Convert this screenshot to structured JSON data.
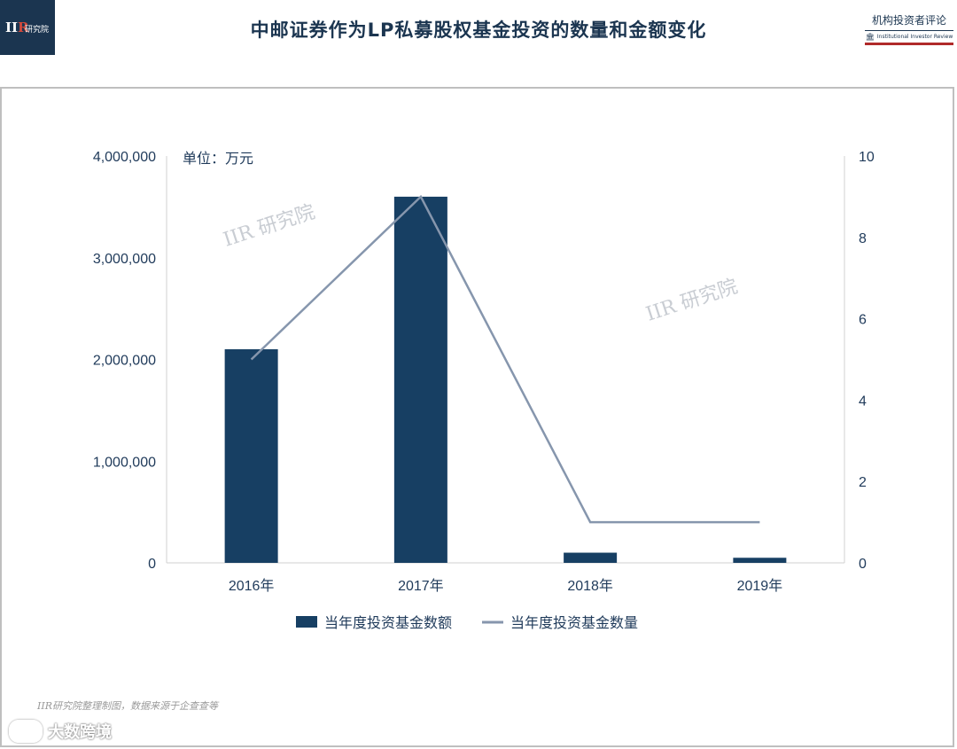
{
  "header": {
    "logo_mark_i": "II",
    "logo_mark_r": "R",
    "logo_text": "研究院",
    "title": "中邮证券作为LP私募股权基金投资的数量和金额变化",
    "brand_cn": "机构投资者评论",
    "brand_en": "Institutional Investor Review"
  },
  "footer": {
    "source": "IIR研究院整理制图，数据来源于企查查等",
    "corner_text": "大数跨境"
  },
  "chart_data": {
    "type": "bar",
    "unit_label": "单位：万元",
    "watermark": "IIR 研究院",
    "categories": [
      "2016年",
      "2017年",
      "2018年",
      "2019年"
    ],
    "series": [
      {
        "name": "当年度投资基金数额",
        "type": "bar",
        "axis": "left",
        "color": "#173f63",
        "values": [
          2100000,
          3600000,
          100000,
          50000
        ]
      },
      {
        "name": "当年度投资基金数量",
        "type": "line",
        "axis": "right",
        "color": "#8696ad",
        "values": [
          5,
          9,
          1,
          1
        ]
      }
    ],
    "y_left": {
      "range": [
        0,
        4000000
      ],
      "ticks": [
        "0",
        "1,000,000",
        "2,000,000",
        "3,000,000",
        "4,000,000"
      ]
    },
    "y_right": {
      "range": [
        0,
        10
      ],
      "ticks": [
        "0",
        "2",
        "4",
        "6",
        "8",
        "10"
      ]
    },
    "grid": false,
    "legend_position": "bottom"
  }
}
